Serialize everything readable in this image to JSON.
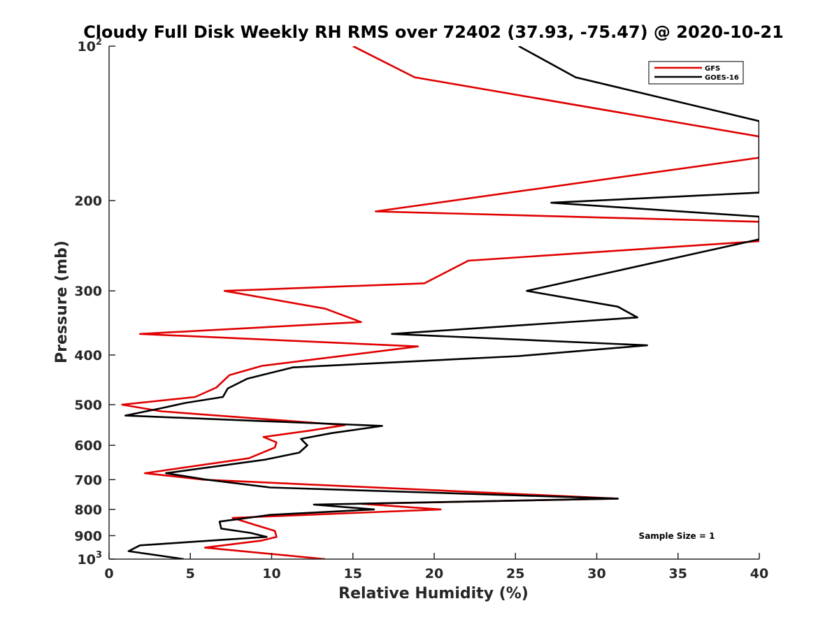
{
  "chart_data": {
    "type": "line",
    "title": "Cloudy Full Disk Weekly RH RMS over 72402 (37.93, -75.47) @ 2020-10-21",
    "xlabel": "Relative Humidity (%)",
    "ylabel": "Pressure (mb)",
    "xlim": [
      0,
      40
    ],
    "ylim": [
      100,
      1000
    ],
    "y_scale": "log",
    "y_reversed": true,
    "x_ticks": [
      0,
      5,
      10,
      15,
      20,
      25,
      30,
      35,
      40
    ],
    "x_tick_labels": [
      "0",
      "5",
      "10",
      "15",
      "20",
      "25",
      "30",
      "35",
      "40"
    ],
    "y_ticks": [
      {
        "value": 100,
        "base": "10",
        "exp": "2"
      },
      {
        "value": 200,
        "base": "200",
        "exp": ""
      },
      {
        "value": 300,
        "base": "300",
        "exp": ""
      },
      {
        "value": 400,
        "base": "400",
        "exp": ""
      },
      {
        "value": 500,
        "base": "500",
        "exp": ""
      },
      {
        "value": 600,
        "base": "600",
        "exp": ""
      },
      {
        "value": 700,
        "base": "700",
        "exp": ""
      },
      {
        "value": 800,
        "base": "800",
        "exp": ""
      },
      {
        "value": 900,
        "base": "900",
        "exp": ""
      },
      {
        "value": 1000,
        "base": "10",
        "exp": "3"
      }
    ],
    "legend_position": "top-right",
    "annotation": "Sample Size = 1",
    "series": [
      {
        "name": "GFS",
        "color": "#e00000",
        "x": [
          15.0,
          18.8,
          40.0,
          40.0,
          16.4,
          40.0,
          40.0,
          22.1,
          19.4,
          7.1,
          13.3,
          15.5,
          1.9,
          19.0,
          9.4,
          7.4,
          6.6,
          5.3,
          0.8,
          3.2,
          14.5,
          12.3,
          9.5,
          10.3,
          10.2,
          8.6,
          2.2,
          5.8,
          31.3,
          15.5,
          20.4,
          7.6,
          9.1,
          10.2,
          10.3,
          9.4,
          5.9,
          13.3
        ],
        "y": [
          100,
          115,
          150,
          165,
          210,
          220,
          240,
          262,
          290,
          300,
          325,
          345,
          364,
          385,
          420,
          438,
          463,
          483,
          500,
          515,
          548,
          562,
          578,
          592,
          606,
          636,
          680,
          700,
          762,
          780,
          800,
          831,
          860,
          881,
          905,
          920,
          950,
          1000
        ]
      },
      {
        "name": "GOES-16",
        "color": "#000000",
        "x": [
          25.2,
          28.7,
          40.0,
          40.0,
          27.2,
          40.0,
          40.0,
          25.7,
          31.3,
          32.5,
          17.4,
          33.1,
          25.2,
          11.3,
          8.5,
          7.3,
          7.0,
          4.7,
          3.2,
          1.0,
          16.8,
          13.7,
          11.8,
          12.2,
          11.7,
          9.6,
          3.5,
          6.0,
          9.9,
          31.3,
          12.6,
          16.3,
          9.9,
          6.8,
          6.9,
          8.7,
          9.7,
          1.9,
          1.2,
          4.6
        ],
        "y": [
          100,
          115,
          140,
          193,
          202,
          215,
          238,
          300,
          322,
          338,
          364,
          383,
          402,
          423,
          445,
          465,
          483,
          496,
          508,
          525,
          550,
          568,
          583,
          600,
          620,
          640,
          680,
          700,
          725,
          762,
          783,
          800,
          820,
          845,
          872,
          889,
          905,
          940,
          965,
          1000
        ]
      }
    ]
  }
}
